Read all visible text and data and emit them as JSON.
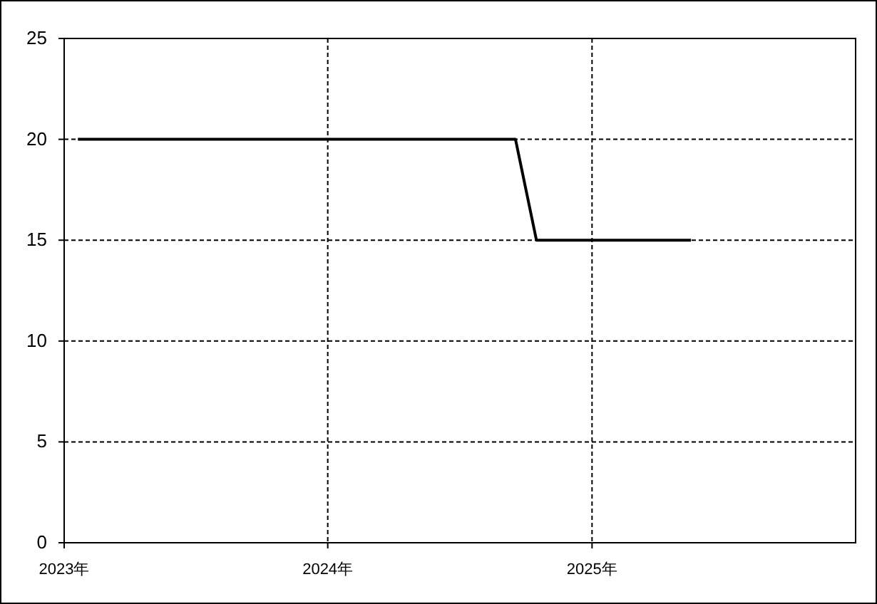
{
  "chart_data": {
    "type": "line",
    "x": [
      "2023-01-20",
      "2024-09-17",
      "2024-10-16",
      "2025-05-18"
    ],
    "series": [
      {
        "color": "#000000",
        "values": [
          20,
          20,
          15,
          15
        ]
      }
    ],
    "xlim": [
      "2023-01-01",
      "2026-01-01"
    ],
    "xticks": [
      {
        "value": "2023-01-01",
        "label": "2023年"
      },
      {
        "value": "2024-01-01",
        "label": "2024年"
      },
      {
        "value": "2025-01-01",
        "label": "2025年"
      }
    ],
    "ylim": [
      0,
      25
    ],
    "yticks": [
      0,
      5,
      10,
      15,
      20,
      25
    ],
    "grid": true,
    "marker": "none",
    "line_style": "solid"
  }
}
